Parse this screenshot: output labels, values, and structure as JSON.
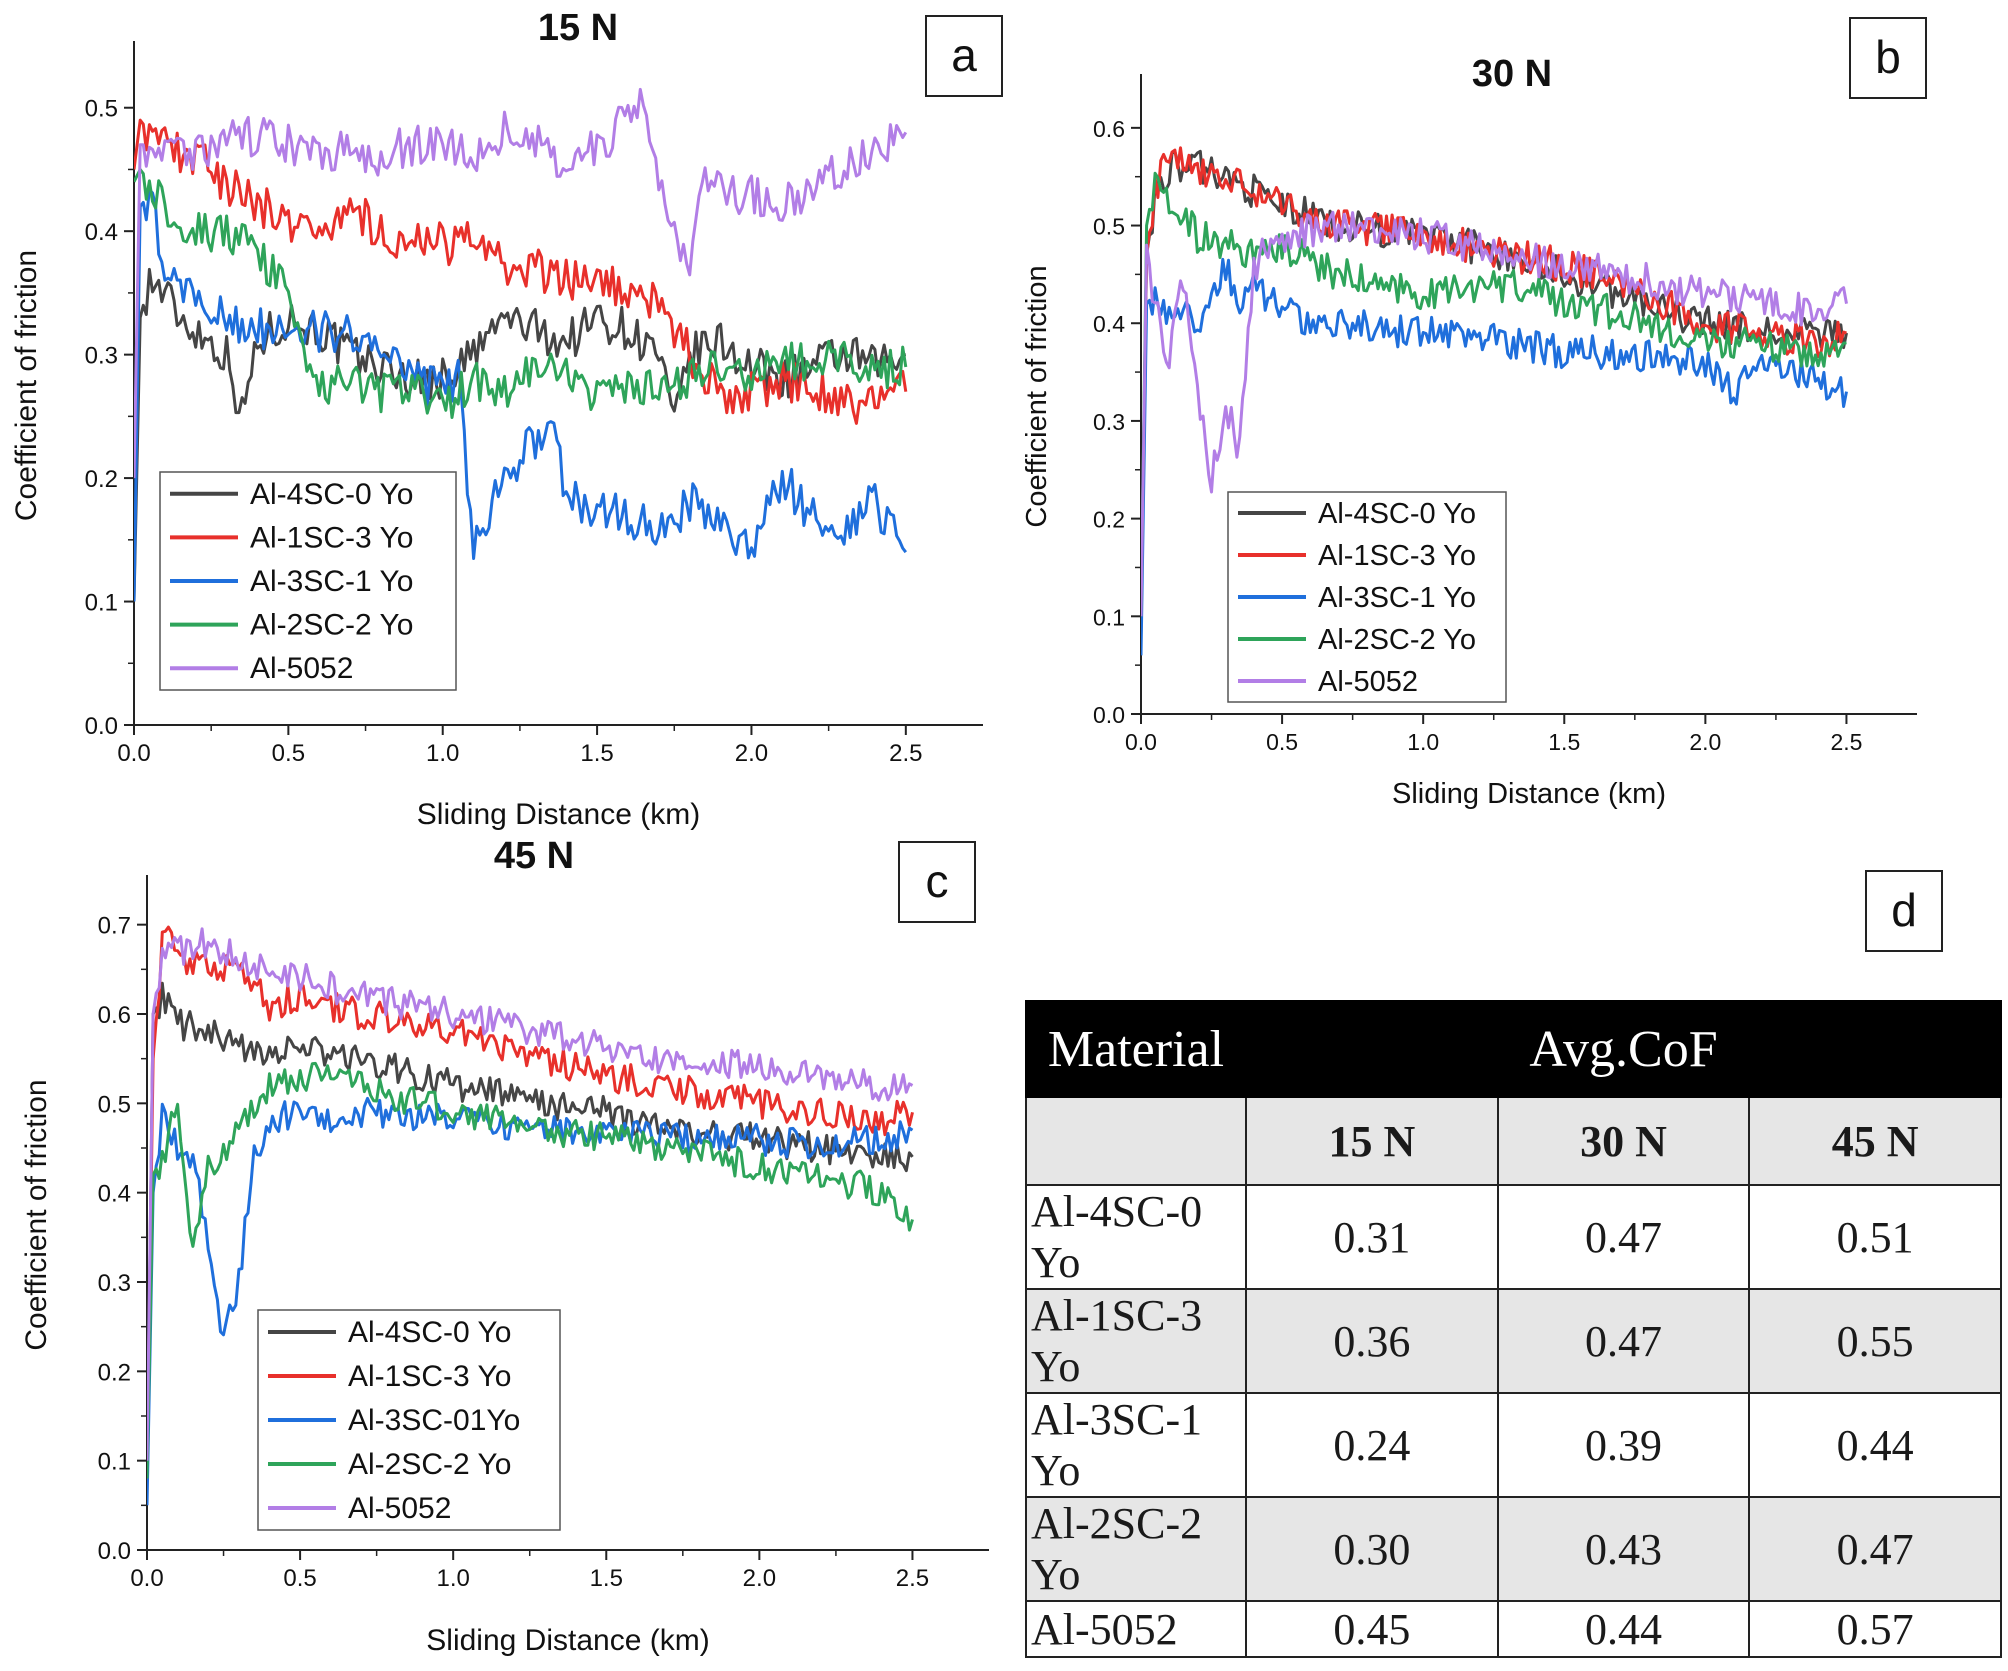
{
  "colors": {
    "Al-4SC-0 Yo": "#454545",
    "Al-1SC-3 Yo": "#e8302b",
    "Al-3SC-1 Yo": "#1f6fdc",
    "Al-2SC-2 Yo": "#2ea45a",
    "Al-5052": "#b27ee6"
  },
  "chart_data": [
    {
      "panel": "a",
      "type": "line",
      "title": "15 N",
      "xlabel": "Sliding Distance (km)",
      "ylabel": "Coefficient of friction",
      "xlim": [
        0,
        2.75
      ],
      "ylim": [
        0,
        0.55
      ],
      "xticks": [
        "0.0",
        "0.5",
        "1.0",
        "1.5",
        "2.0",
        "2.5"
      ],
      "yticks": [
        "0.0",
        "0.1",
        "0.2",
        "0.3",
        "0.4",
        "0.5"
      ],
      "legend": [
        "Al-4SC-0 Yo",
        "Al-1SC-3 Yo",
        "Al-3SC-1 Yo",
        "Al-2SC-2 Yo",
        "Al-5052"
      ],
      "legend_position": "bottom-left",
      "series": [
        {
          "name": "Al-4SC-0 Yo",
          "x": [
            0,
            0.02,
            0.05,
            0.1,
            0.15,
            0.2,
            0.3,
            0.35,
            0.4,
            0.5,
            0.6,
            0.7,
            0.8,
            0.9,
            1.0,
            1.1,
            1.2,
            1.3,
            1.4,
            1.5,
            1.6,
            1.7,
            1.75,
            1.8,
            1.9,
            2.0,
            2.1,
            2.2,
            2.3,
            2.4,
            2.5
          ],
          "y": [
            0.1,
            0.33,
            0.36,
            0.35,
            0.33,
            0.32,
            0.3,
            0.25,
            0.31,
            0.33,
            0.32,
            0.3,
            0.29,
            0.28,
            0.28,
            0.3,
            0.33,
            0.32,
            0.31,
            0.33,
            0.32,
            0.3,
            0.24,
            0.3,
            0.31,
            0.29,
            0.28,
            0.29,
            0.3,
            0.29,
            0.3
          ]
        },
        {
          "name": "Al-1SC-3 Yo",
          "x": [
            0,
            0.02,
            0.05,
            0.1,
            0.2,
            0.3,
            0.4,
            0.5,
            0.6,
            0.7,
            0.8,
            0.9,
            1.0,
            1.1,
            1.2,
            1.3,
            1.4,
            1.5,
            1.6,
            1.7,
            1.8,
            1.9,
            2.0,
            2.1,
            2.2,
            2.3,
            2.4,
            2.5
          ],
          "y": [
            0.45,
            0.49,
            0.48,
            0.47,
            0.46,
            0.44,
            0.42,
            0.41,
            0.4,
            0.42,
            0.4,
            0.39,
            0.39,
            0.39,
            0.37,
            0.37,
            0.36,
            0.36,
            0.35,
            0.34,
            0.3,
            0.27,
            0.27,
            0.28,
            0.27,
            0.26,
            0.26,
            0.27
          ]
        },
        {
          "name": "Al-3SC-1 Yo",
          "x": [
            0,
            0.02,
            0.05,
            0.1,
            0.2,
            0.3,
            0.4,
            0.5,
            0.6,
            0.7,
            0.8,
            0.9,
            1.0,
            1.05,
            1.1,
            1.2,
            1.3,
            1.35,
            1.4,
            1.5,
            1.6,
            1.7,
            1.8,
            1.9,
            2.0,
            2.1,
            2.2,
            2.3,
            2.4,
            2.5
          ],
          "y": [
            0.1,
            0.42,
            0.43,
            0.37,
            0.34,
            0.33,
            0.32,
            0.33,
            0.32,
            0.32,
            0.3,
            0.28,
            0.27,
            0.28,
            0.15,
            0.2,
            0.23,
            0.25,
            0.19,
            0.17,
            0.17,
            0.16,
            0.18,
            0.16,
            0.14,
            0.2,
            0.17,
            0.16,
            0.18,
            0.14
          ]
        },
        {
          "name": "Al-2SC-2 Yo",
          "x": [
            0,
            0.02,
            0.05,
            0.1,
            0.2,
            0.3,
            0.4,
            0.5,
            0.6,
            0.7,
            0.8,
            0.9,
            1.0,
            1.1,
            1.2,
            1.3,
            1.4,
            1.5,
            1.6,
            1.7,
            1.8,
            1.9,
            2.0,
            2.1,
            2.2,
            2.3,
            2.4,
            2.5
          ],
          "y": [
            0.44,
            0.45,
            0.44,
            0.42,
            0.4,
            0.4,
            0.38,
            0.35,
            0.27,
            0.28,
            0.27,
            0.27,
            0.26,
            0.28,
            0.27,
            0.29,
            0.28,
            0.27,
            0.27,
            0.27,
            0.28,
            0.29,
            0.28,
            0.3,
            0.29,
            0.3,
            0.29,
            0.29
          ]
        },
        {
          "name": "Al-5052",
          "x": [
            0,
            0.02,
            0.05,
            0.1,
            0.2,
            0.3,
            0.4,
            0.5,
            0.6,
            0.7,
            0.8,
            0.9,
            1.0,
            1.1,
            1.2,
            1.3,
            1.4,
            1.5,
            1.6,
            1.65,
            1.7,
            1.8,
            1.85,
            1.9,
            2.0,
            2.1,
            2.2,
            2.3,
            2.4,
            2.5
          ],
          "y": [
            0.2,
            0.47,
            0.47,
            0.46,
            0.46,
            0.47,
            0.48,
            0.47,
            0.46,
            0.47,
            0.46,
            0.47,
            0.47,
            0.46,
            0.48,
            0.47,
            0.45,
            0.47,
            0.49,
            0.5,
            0.44,
            0.36,
            0.45,
            0.43,
            0.43,
            0.42,
            0.44,
            0.45,
            0.46,
            0.48
          ]
        }
      ]
    },
    {
      "panel": "b",
      "type": "line",
      "title": "30 N",
      "xlabel": "Sliding Distance (km)",
      "ylabel": "Coefficient of friction",
      "xlim": [
        0,
        2.75
      ],
      "ylim": [
        0,
        0.65
      ],
      "xticks": [
        "0.0",
        "0.5",
        "1.0",
        "1.5",
        "2.0",
        "2.5"
      ],
      "yticks": [
        "0.0",
        "0.1",
        "0.2",
        "0.3",
        "0.4",
        "0.5",
        "0.6"
      ],
      "legend": [
        "Al-4SC-0 Yo",
        "Al-1SC-3 Yo",
        "Al-3SC-1 Yo",
        "Al-2SC-2 Yo",
        "Al-5052"
      ],
      "legend_position": "bottom-center",
      "series": [
        {
          "name": "Al-4SC-0 Yo",
          "x": [
            0,
            0.02,
            0.05,
            0.1,
            0.2,
            0.3,
            0.5,
            0.7,
            1.0,
            1.3,
            1.5,
            1.7,
            2.0,
            2.2,
            2.4,
            2.5
          ],
          "y": [
            0.08,
            0.47,
            0.53,
            0.56,
            0.56,
            0.55,
            0.52,
            0.5,
            0.49,
            0.47,
            0.45,
            0.43,
            0.4,
            0.39,
            0.39,
            0.39
          ]
        },
        {
          "name": "Al-1SC-3 Yo",
          "x": [
            0,
            0.02,
            0.05,
            0.1,
            0.15,
            0.2,
            0.3,
            0.5,
            0.7,
            1.0,
            1.3,
            1.5,
            1.7,
            2.0,
            2.2,
            2.4,
            2.5
          ],
          "y": [
            0.1,
            0.47,
            0.54,
            0.57,
            0.57,
            0.56,
            0.55,
            0.52,
            0.5,
            0.49,
            0.47,
            0.46,
            0.44,
            0.4,
            0.39,
            0.38,
            0.39
          ]
        },
        {
          "name": "Al-3SC-1 Yo",
          "x": [
            0,
            0.02,
            0.05,
            0.1,
            0.2,
            0.3,
            0.35,
            0.4,
            0.5,
            0.7,
            1.0,
            1.3,
            1.5,
            1.7,
            2.0,
            2.1,
            2.2,
            2.4,
            2.5
          ],
          "y": [
            0.06,
            0.42,
            0.43,
            0.41,
            0.4,
            0.46,
            0.42,
            0.44,
            0.41,
            0.4,
            0.39,
            0.38,
            0.37,
            0.37,
            0.36,
            0.33,
            0.36,
            0.34,
            0.33
          ]
        },
        {
          "name": "Al-2SC-2 Yo",
          "x": [
            0,
            0.02,
            0.05,
            0.1,
            0.2,
            0.3,
            0.4,
            0.5,
            0.7,
            1.0,
            1.3,
            1.5,
            1.7,
            2.0,
            2.2,
            2.4,
            2.5
          ],
          "y": [
            0.1,
            0.5,
            0.55,
            0.53,
            0.49,
            0.48,
            0.47,
            0.48,
            0.45,
            0.43,
            0.44,
            0.42,
            0.41,
            0.38,
            0.38,
            0.37,
            0.38
          ]
        },
        {
          "name": "Al-5052",
          "x": [
            0,
            0.02,
            0.05,
            0.1,
            0.15,
            0.2,
            0.25,
            0.3,
            0.35,
            0.4,
            0.5,
            0.7,
            1.0,
            1.3,
            1.5,
            1.7,
            2.0,
            2.2,
            2.4,
            2.5
          ],
          "y": [
            0.1,
            0.48,
            0.42,
            0.36,
            0.45,
            0.33,
            0.24,
            0.32,
            0.27,
            0.46,
            0.49,
            0.5,
            0.49,
            0.47,
            0.46,
            0.45,
            0.43,
            0.42,
            0.41,
            0.42
          ]
        }
      ]
    },
    {
      "panel": "c",
      "type": "line",
      "title": "45 N",
      "xlabel": "Sliding Distance (km)",
      "ylabel": "Coefficient of friction",
      "xlim": [
        0,
        2.75
      ],
      "ylim": [
        0,
        0.75
      ],
      "xticks": [
        "0.0",
        "0.5",
        "1.0",
        "1.5",
        "2.0",
        "2.5"
      ],
      "yticks": [
        "0.0",
        "0.1",
        "0.2",
        "0.3",
        "0.4",
        "0.5",
        "0.6",
        "0.7"
      ],
      "legend": [
        "Al-4SC-0 Yo",
        "Al-1SC-3 Yo",
        "Al-3SC-01Yo",
        "Al-2SC-2 Yo",
        "Al-5052"
      ],
      "legend_position": "bottom-center",
      "series": [
        {
          "name": "Al-4SC-0 Yo",
          "x": [
            0,
            0.02,
            0.05,
            0.1,
            0.2,
            0.3,
            0.5,
            0.7,
            1.0,
            1.3,
            1.5,
            1.7,
            2.0,
            2.2,
            2.4,
            2.5
          ],
          "y": [
            0.08,
            0.6,
            0.62,
            0.59,
            0.58,
            0.56,
            0.56,
            0.55,
            0.52,
            0.5,
            0.49,
            0.47,
            0.46,
            0.45,
            0.44,
            0.44
          ]
        },
        {
          "name": "Al-1SC-3 Yo",
          "x": [
            0,
            0.02,
            0.05,
            0.07,
            0.1,
            0.2,
            0.3,
            0.4,
            0.5,
            0.7,
            1.0,
            1.3,
            1.5,
            1.7,
            2.0,
            2.2,
            2.4,
            2.5
          ],
          "y": [
            0.1,
            0.55,
            0.68,
            0.71,
            0.66,
            0.65,
            0.66,
            0.61,
            0.62,
            0.6,
            0.58,
            0.55,
            0.53,
            0.52,
            0.5,
            0.49,
            0.48,
            0.49
          ]
        },
        {
          "name": "Al-3SC-01Yo",
          "x": [
            0,
            0.02,
            0.05,
            0.1,
            0.15,
            0.2,
            0.25,
            0.3,
            0.35,
            0.4,
            0.5,
            0.6,
            0.7,
            1.0,
            1.3,
            1.5,
            1.7,
            2.0,
            2.2,
            2.4,
            2.5
          ],
          "y": [
            0.05,
            0.4,
            0.49,
            0.45,
            0.43,
            0.35,
            0.23,
            0.3,
            0.44,
            0.47,
            0.5,
            0.48,
            0.49,
            0.48,
            0.47,
            0.47,
            0.46,
            0.46,
            0.45,
            0.46,
            0.47
          ]
        },
        {
          "name": "Al-2SC-2 Yo",
          "x": [
            0,
            0.02,
            0.05,
            0.1,
            0.15,
            0.2,
            0.3,
            0.4,
            0.5,
            0.7,
            1.0,
            1.3,
            1.5,
            1.7,
            2.0,
            2.2,
            2.4,
            2.5
          ],
          "y": [
            0.08,
            0.42,
            0.44,
            0.5,
            0.34,
            0.43,
            0.47,
            0.52,
            0.53,
            0.52,
            0.49,
            0.47,
            0.46,
            0.45,
            0.43,
            0.42,
            0.4,
            0.37
          ]
        },
        {
          "name": "Al-5052",
          "x": [
            0,
            0.02,
            0.05,
            0.1,
            0.2,
            0.3,
            0.5,
            0.7,
            1.0,
            1.3,
            1.5,
            1.7,
            2.0,
            2.2,
            2.4,
            2.5
          ],
          "y": [
            0.1,
            0.6,
            0.67,
            0.67,
            0.68,
            0.66,
            0.64,
            0.62,
            0.6,
            0.58,
            0.56,
            0.55,
            0.54,
            0.53,
            0.52,
            0.52
          ]
        }
      ]
    },
    {
      "panel": "d",
      "type": "table",
      "header_material": "Material",
      "header_avg": "Avg.CoF",
      "subheaders": [
        "15 N",
        "30 N",
        "45 N"
      ],
      "rows": [
        {
          "material": "Al-4SC-0  Yo",
          "v15": "0.31",
          "v30": "0.47",
          "v45": "0.51"
        },
        {
          "material": "Al-1SC-3  Yo",
          "v15": "0.36",
          "v30": "0.47",
          "v45": "0.55"
        },
        {
          "material": "Al-3SC-1  Yo",
          "v15": "0.24",
          "v30": "0.39",
          "v45": "0.44"
        },
        {
          "material": "Al-2SC-2  Yo",
          "v15": "0.30",
          "v30": "0.43",
          "v45": "0.47"
        },
        {
          "material": "Al-5052",
          "v15": "0.45",
          "v30": "0.44",
          "v45": "0.57"
        }
      ]
    }
  ],
  "panel_labels": {
    "a": "a",
    "b": "b",
    "c": "c",
    "d": "d"
  }
}
